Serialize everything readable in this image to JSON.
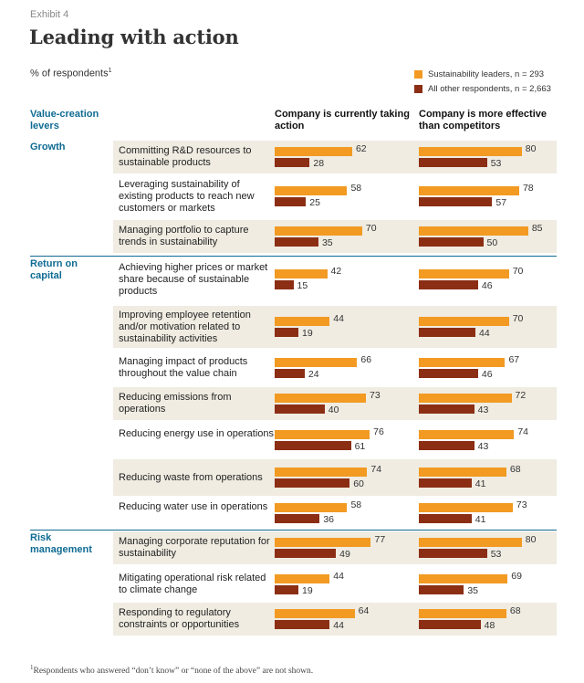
{
  "exhibit_label": "Exhibit 4",
  "title": "Leading with action",
  "unit_label": "% of respondents",
  "unit_footnote_marker": "1",
  "legend": [
    {
      "label": "Sustainability leaders, n = 293",
      "color": "#f29a22"
    },
    {
      "label": "All other respondents, n = 2,663",
      "color": "#8b2e14"
    }
  ],
  "headers": {
    "levers": "Value-creation levers",
    "col1": "Company is currently taking action",
    "col2": "Company is more effective than competitors"
  },
  "footnote": {
    "marker": "1",
    "text": "Respondents who answered “don’t know” or “none of the above” are not shown."
  },
  "chart_data": {
    "type": "bar",
    "orientation": "horizontal",
    "series_names": [
      "Sustainability leaders, n = 293",
      "All other respondents, n = 2,663"
    ],
    "groups": [
      {
        "name": "Growth",
        "rows": [
          {
            "label": "Committing R&D resources to sustainable products",
            "taking_action": [
              62,
              28
            ],
            "more_effective": [
              80,
              53
            ]
          },
          {
            "label": "Leveraging sustainability of existing products to reach new customers or markets",
            "taking_action": [
              58,
              25
            ],
            "more_effective": [
              78,
              57
            ]
          },
          {
            "label": "Managing portfolio to capture trends in sustainability",
            "taking_action": [
              70,
              35
            ],
            "more_effective": [
              85,
              50
            ]
          }
        ]
      },
      {
        "name": "Return on capital",
        "rows": [
          {
            "label": "Achieving higher prices or market share because of sustainable products",
            "taking_action": [
              42,
              15
            ],
            "more_effective": [
              70,
              46
            ]
          },
          {
            "label": "Improving employee retention and/or motivation related to sustainability activities",
            "taking_action": [
              44,
              19
            ],
            "more_effective": [
              70,
              44
            ]
          },
          {
            "label": "Managing impact of products throughout the value chain",
            "taking_action": [
              66,
              24
            ],
            "more_effective": [
              67,
              46
            ]
          },
          {
            "label": "Reducing emissions from operations",
            "taking_action": [
              73,
              40
            ],
            "more_effective": [
              72,
              43
            ]
          },
          {
            "label": "Reducing energy use in operations",
            "taking_action": [
              76,
              61
            ],
            "more_effective": [
              74,
              43
            ]
          },
          {
            "label": "Reducing waste from operations",
            "taking_action": [
              74,
              60
            ],
            "more_effective": [
              68,
              41
            ]
          },
          {
            "label": "Reducing water use in operations",
            "taking_action": [
              58,
              36
            ],
            "more_effective": [
              73,
              41
            ]
          }
        ]
      },
      {
        "name": "Risk management",
        "rows": [
          {
            "label": "Managing corporate reputation for sustainability",
            "taking_action": [
              77,
              49
            ],
            "more_effective": [
              80,
              53
            ]
          },
          {
            "label": "Mitigating operational risk related to climate change",
            "taking_action": [
              44,
              19
            ],
            "more_effective": [
              69,
              35
            ]
          },
          {
            "label": "Responding to regulatory constraints or opportunities",
            "taking_action": [
              64,
              44
            ],
            "more_effective": [
              68,
              48
            ]
          }
        ]
      }
    ],
    "xlim": [
      0,
      100
    ],
    "grid": false,
    "legend_position": "top-right"
  }
}
